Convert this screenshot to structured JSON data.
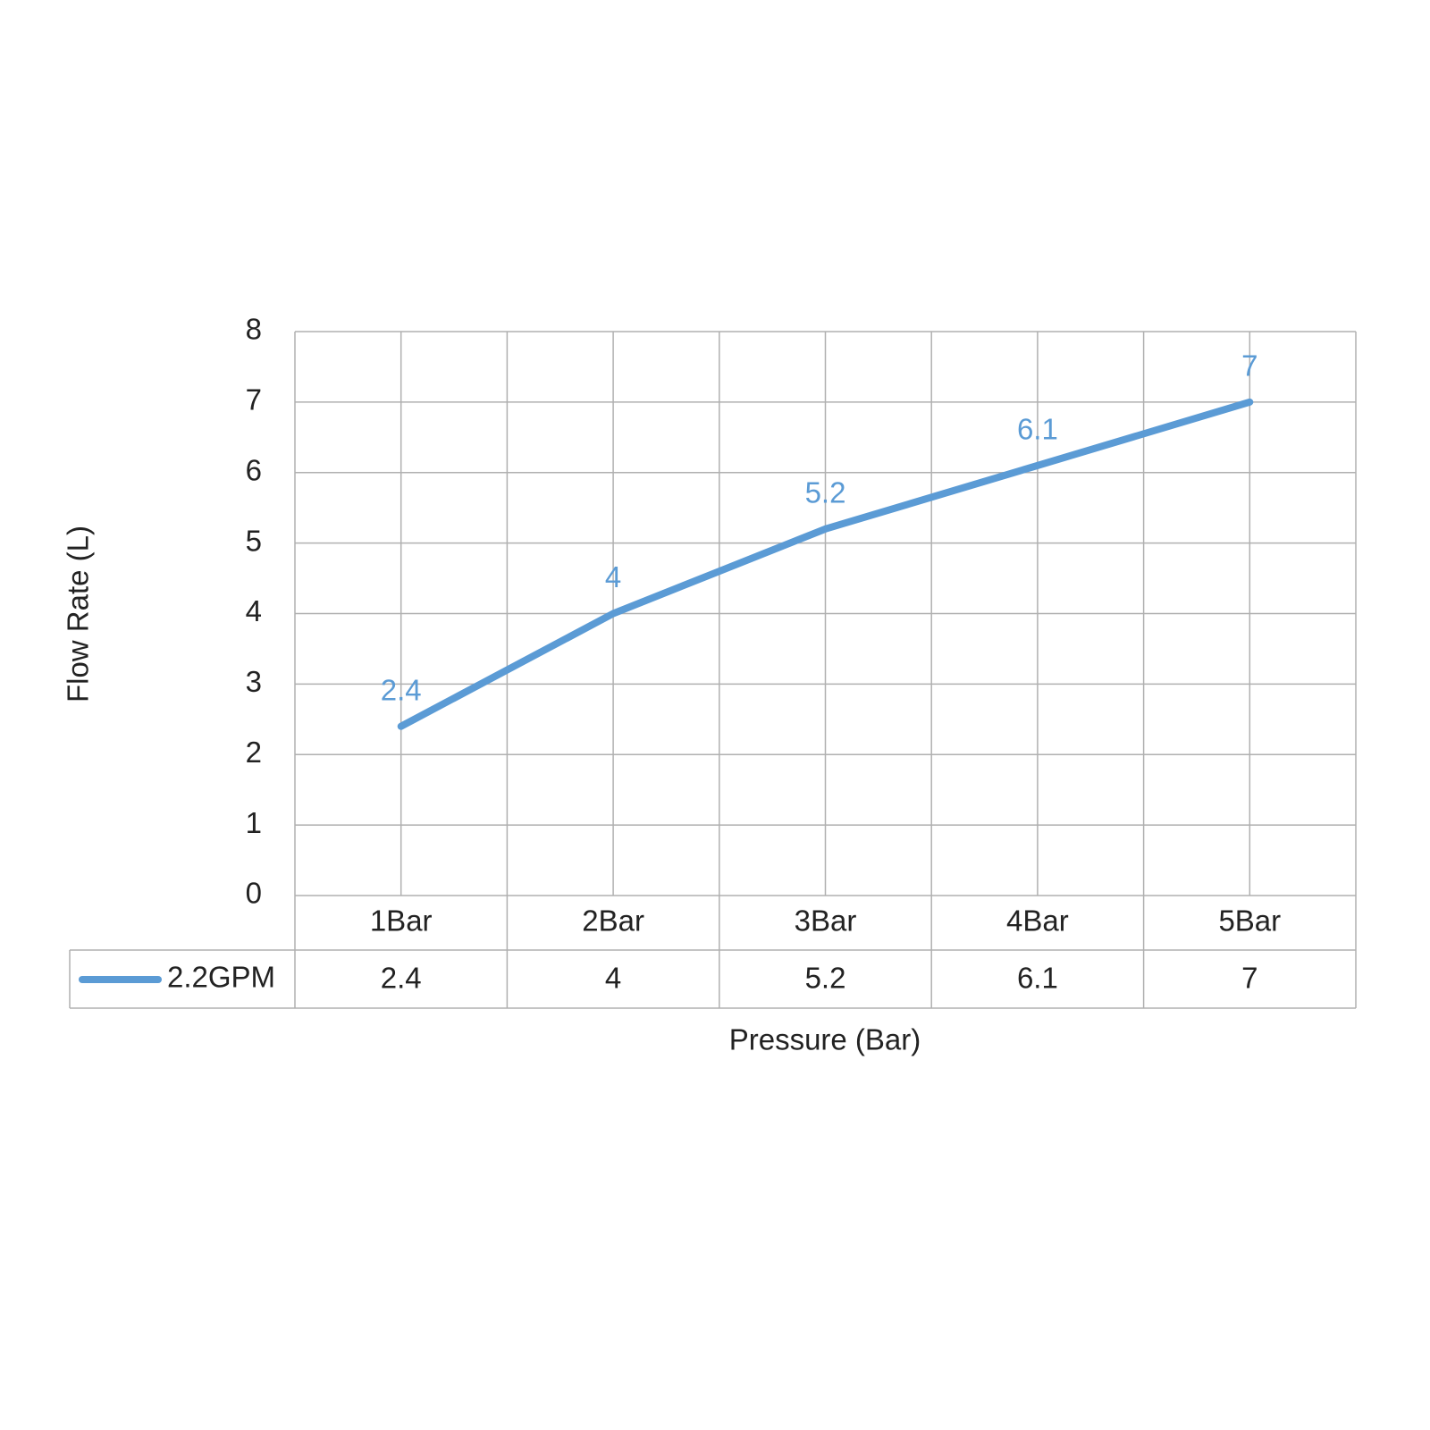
{
  "chart_data": {
    "type": "line",
    "x_label": "Pressure (Bar)",
    "y_label": "Flow Rate (L)",
    "categories": [
      "1Bar",
      "2Bar",
      "3Bar",
      "4Bar",
      "5Bar"
    ],
    "series": [
      {
        "name": "2.2GPM",
        "color": "#5b9bd5",
        "values": [
          2.4,
          4,
          5.2,
          6.1,
          7
        ]
      }
    ],
    "ylim": [
      0,
      8
    ],
    "yticks": [
      0,
      1,
      2,
      3,
      4,
      5,
      6,
      7,
      8
    ],
    "grid": true,
    "data_labels": true,
    "data_table": true
  }
}
